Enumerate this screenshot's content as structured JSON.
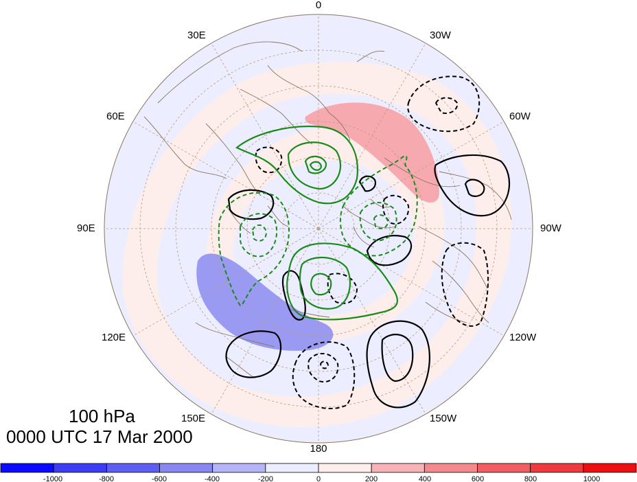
{
  "map": {
    "projection": "north-polar-stereographic",
    "longitude_labels": [
      "0",
      "30W",
      "60W",
      "90W",
      "120W",
      "150W",
      "180",
      "150E",
      "120E",
      "90E",
      "60E",
      "30E"
    ],
    "shading_colors": {
      "neg_light": "#eceeff",
      "neg_mid": "#8c8cf0",
      "pos_light": "#fdeeec",
      "pos_mid": "#f6a8ad"
    },
    "contour_colors": {
      "primary": "#000000",
      "secondary": "#1a8a1a"
    },
    "grid_color": "#b89a78",
    "coast_color": "#8a7560"
  },
  "title": {
    "level": "100 hPa",
    "time": "0000 UTC 17 Mar 2000"
  },
  "colorbar": {
    "tick_labels": [
      "-1000",
      "-800",
      "-600",
      "-400",
      "-200",
      "0",
      "200",
      "400",
      "600",
      "800",
      "1000"
    ],
    "colors": [
      "#0a0aff",
      "#3c3cf5",
      "#5e5ef2",
      "#8888f0",
      "#b4b4f6",
      "#eceeff",
      "#fdeeec",
      "#f7b4b8",
      "#f38a8e",
      "#f05e62",
      "#ee3c3e",
      "#ec1010"
    ]
  }
}
